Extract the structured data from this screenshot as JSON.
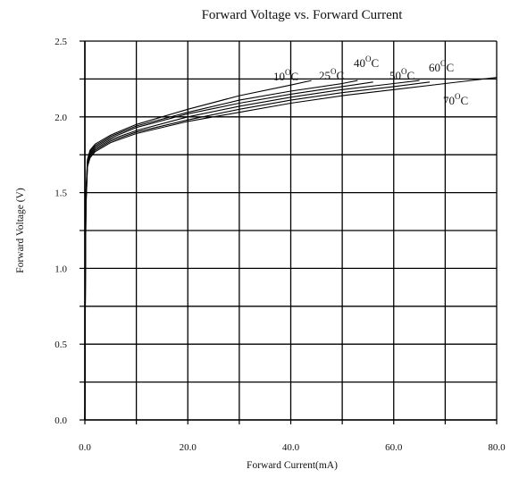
{
  "chart_data": {
    "type": "line",
    "title": "Forward Voltage vs. Forward Current",
    "xlabel": "Forward Current(mA)",
    "ylabel": "Forward Voltage (V)",
    "xlim": [
      0,
      80
    ],
    "ylim": [
      0,
      2.5
    ],
    "grid": true,
    "x_ticks": [
      0,
      10,
      20,
      30,
      40,
      50,
      60,
      70,
      80
    ],
    "x_tick_labels": [
      "0.0",
      "",
      "20.0",
      "",
      "40.0",
      "",
      "60.0",
      "",
      "80.0"
    ],
    "y_ticks": [
      0,
      0.25,
      0.5,
      0.75,
      1.0,
      1.25,
      1.5,
      1.75,
      2.0,
      2.25,
      2.5
    ],
    "y_tick_labels": [
      "0.0",
      "",
      "0.5",
      "",
      "1.0",
      "",
      "1.5",
      "",
      "2.0",
      "",
      "2.5"
    ],
    "series": [
      {
        "name": "10°C",
        "x": [
          0,
          0.1,
          0.2,
          0.5,
          1,
          2,
          5,
          10,
          20,
          30,
          40,
          44
        ],
        "y": [
          0,
          1.0,
          1.5,
          1.72,
          1.78,
          1.82,
          1.88,
          1.95,
          2.05,
          2.14,
          2.21,
          2.24
        ]
      },
      {
        "name": "25°C",
        "x": [
          0,
          0.1,
          0.2,
          0.5,
          1,
          2,
          5,
          10,
          20,
          30,
          40,
          50,
          53
        ],
        "y": [
          0,
          0.98,
          1.48,
          1.71,
          1.77,
          1.81,
          1.87,
          1.94,
          2.03,
          2.11,
          2.17,
          2.22,
          2.24
        ]
      },
      {
        "name": "40°C",
        "x": [
          0,
          0.1,
          0.2,
          0.5,
          1,
          2,
          5,
          10,
          20,
          30,
          40,
          50,
          56
        ],
        "y": [
          0,
          0.96,
          1.46,
          1.7,
          1.76,
          1.8,
          1.86,
          1.93,
          2.02,
          2.09,
          2.15,
          2.2,
          2.23
        ]
      },
      {
        "name": "50°C",
        "x": [
          0,
          0.1,
          0.2,
          0.5,
          1,
          2,
          5,
          10,
          20,
          30,
          40,
          50,
          60,
          65
        ],
        "y": [
          0,
          0.95,
          1.44,
          1.69,
          1.75,
          1.79,
          1.85,
          1.91,
          2.0,
          2.07,
          2.13,
          2.18,
          2.22,
          2.24
        ]
      },
      {
        "name": "60°C",
        "x": [
          0,
          0.1,
          0.2,
          0.5,
          1,
          2,
          5,
          10,
          20,
          30,
          40,
          50,
          60,
          67
        ],
        "y": [
          0,
          0.94,
          1.42,
          1.68,
          1.74,
          1.78,
          1.84,
          1.9,
          1.98,
          2.05,
          2.11,
          2.16,
          2.2,
          2.23
        ]
      },
      {
        "name": "70°C",
        "x": [
          0,
          0.1,
          0.2,
          0.5,
          1,
          2,
          5,
          10,
          20,
          30,
          40,
          50,
          60,
          70,
          80
        ],
        "y": [
          0,
          0.93,
          1.4,
          1.67,
          1.73,
          1.77,
          1.83,
          1.89,
          1.97,
          2.03,
          2.09,
          2.14,
          2.18,
          2.22,
          2.26
        ]
      }
    ]
  }
}
